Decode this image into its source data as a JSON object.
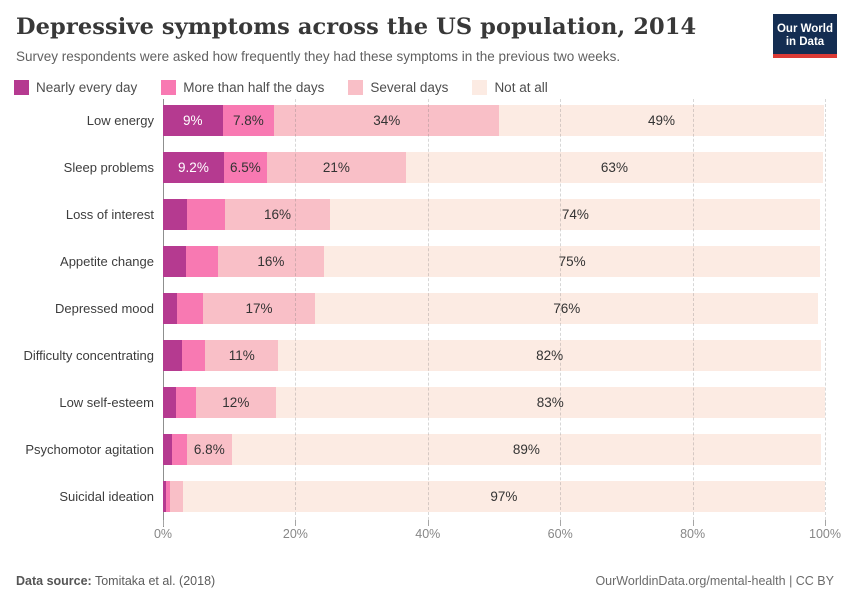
{
  "header": {
    "title": "Depressive symptoms across the US population, 2014",
    "subtitle": "Survey respondents were asked how frequently they had these symptoms in the previous two weeks.",
    "logo": {
      "line1": "Our World",
      "line2": "in Data",
      "bg_color": "#142d52",
      "accent_color": "#dc3a35"
    }
  },
  "chart_data": {
    "type": "bar",
    "stacked": true,
    "orientation": "horizontal",
    "title": "Depressive symptoms across the US population, 2014",
    "categories": [
      "Low energy",
      "Sleep problems",
      "Loss of interest",
      "Appetite change",
      "Depressed mood",
      "Difficulty concentrating",
      "Low self-esteem",
      "Psychomotor agitation",
      "Suicidal ideation"
    ],
    "series": [
      {
        "name": "Nearly every day",
        "color": "#b53a90",
        "label_color": "#ffffff",
        "values": [
          9,
          9.2,
          3.7,
          3.4,
          2.1,
          2.8,
          2.0,
          1.3,
          0.4
        ],
        "value_labels": [
          "9%",
          "9.2%",
          "",
          "",
          "",
          "",
          "",
          "",
          ""
        ]
      },
      {
        "name": "More than half the days",
        "color": "#f879b2",
        "label_color": "#333333",
        "values": [
          7.8,
          6.5,
          5.6,
          4.9,
          3.9,
          3.6,
          3.0,
          2.3,
          0.6
        ],
        "value_labels": [
          "7.8%",
          "6.5%",
          "",
          "",
          "",
          "",
          "",
          "",
          ""
        ]
      },
      {
        "name": "Several days",
        "color": "#f9bfc7",
        "label_color": "#333333",
        "values": [
          34,
          21,
          16,
          16,
          17,
          11,
          12,
          6.8,
          2.0
        ],
        "value_labels": [
          "34%",
          "21%",
          "16%",
          "16%",
          "17%",
          "11%",
          "12%",
          "6.8%",
          ""
        ]
      },
      {
        "name": "Not at all",
        "color": "#fcebe3",
        "label_color": "#333333",
        "values": [
          49,
          63,
          74,
          75,
          76,
          82,
          83,
          89,
          97
        ],
        "value_labels": [
          "49%",
          "63%",
          "74%",
          "75%",
          "76%",
          "82%",
          "83%",
          "89%",
          "97%"
        ]
      }
    ],
    "x_axis": {
      "range": [
        0,
        100
      ],
      "tick_values": [
        0,
        20,
        40,
        60,
        80,
        100
      ],
      "tick_labels": [
        "0%",
        "20%",
        "40%",
        "60%",
        "80%",
        "100%"
      ],
      "gridlines": "dashed"
    },
    "legend_position": "top"
  },
  "footer": {
    "source_label": "Data source:",
    "source_value": " Tomitaka et al. (2018)",
    "credit": "OurWorldinData.org/mental-health | CC BY"
  }
}
